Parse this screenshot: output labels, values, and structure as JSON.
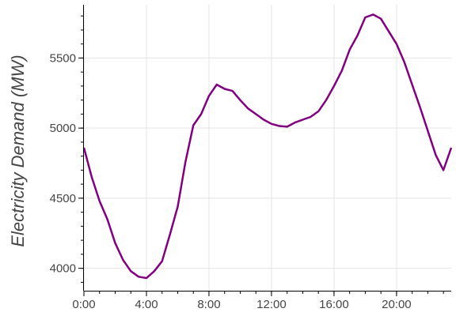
{
  "chart_data": {
    "type": "line",
    "title": "",
    "xlabel": "",
    "ylabel": "Electricity Demand (MW)",
    "xlim": [
      0,
      23.5
    ],
    "ylim": [
      3840,
      5880
    ],
    "xticks": [
      {
        "value": 0,
        "label": "0:00"
      },
      {
        "value": 4,
        "label": "4:00"
      },
      {
        "value": 8,
        "label": "8:00"
      },
      {
        "value": 12,
        "label": "12:00"
      },
      {
        "value": 16,
        "label": "16:00"
      },
      {
        "value": 20,
        "label": "20:00"
      }
    ],
    "yticks": [
      {
        "value": 4000,
        "label": "4000"
      },
      {
        "value": 4500,
        "label": "4500"
      },
      {
        "value": 5000,
        "label": "5000"
      },
      {
        "value": 5500,
        "label": "5500"
      }
    ],
    "grid": true,
    "color": "#800080",
    "series": [
      {
        "x": [
          0,
          0.5,
          1,
          1.5,
          2,
          2.5,
          3,
          3.5,
          4,
          4.5,
          5,
          5.5,
          6,
          6.5,
          7,
          7.5,
          8,
          8.5,
          9,
          9.5,
          10,
          10.5,
          11,
          11.5,
          12,
          12.5,
          13,
          13.5,
          14,
          14.5,
          15,
          15.5,
          16,
          16.5,
          17,
          17.5,
          18,
          18.5,
          19,
          19.5,
          20,
          20.5,
          21,
          21.5,
          22,
          22.5,
          23,
          23.5
        ],
        "y": [
          4860,
          4650,
          4480,
          4350,
          4180,
          4060,
          3980,
          3940,
          3930,
          3980,
          4050,
          4240,
          4440,
          4760,
          5020,
          5100,
          5230,
          5310,
          5280,
          5265,
          5200,
          5140,
          5100,
          5060,
          5030,
          5015,
          5010,
          5040,
          5060,
          5080,
          5120,
          5200,
          5300,
          5410,
          5560,
          5660,
          5790,
          5810,
          5780,
          5690,
          5600,
          5470,
          5310,
          5150,
          4980,
          4810,
          4700,
          4860
        ]
      }
    ]
  }
}
